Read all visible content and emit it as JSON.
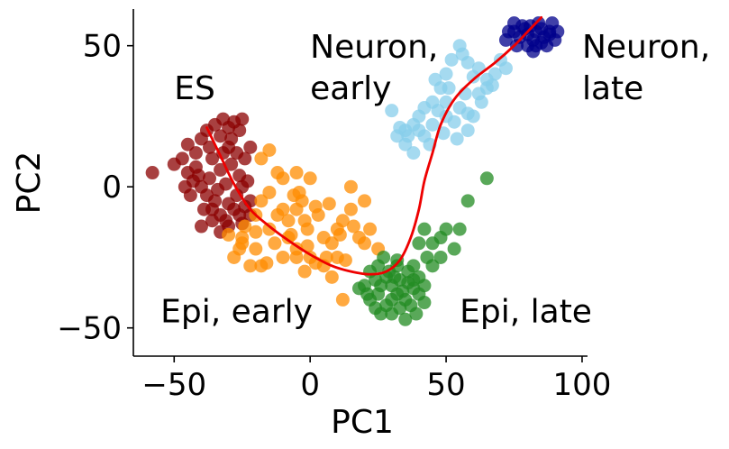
{
  "chart_data": {
    "type": "scatter",
    "title": "",
    "xlabel": "PC1",
    "ylabel": "PC2",
    "xlim": [
      -65,
      102
    ],
    "ylim": [
      -60,
      63
    ],
    "xticks": [
      -50,
      0,
      50,
      100
    ],
    "xtick_labels": [
      "−50",
      "0",
      "50",
      "100"
    ],
    "yticks": [
      -50,
      0,
      50
    ],
    "ytick_labels": [
      "−50",
      "0",
      "50"
    ],
    "grid": false,
    "legend": "none",
    "annotations": [
      {
        "text": "ES",
        "x": -50,
        "y": 31
      },
      {
        "text": "Neuron,\nearly",
        "x": 0,
        "y": 31
      },
      {
        "text": "Neuron,\nlate",
        "x": 100,
        "y": 31
      },
      {
        "text": "Epi, early",
        "x": -55,
        "y": -48
      },
      {
        "text": "Epi, late",
        "x": 55,
        "y": -48
      }
    ],
    "series": [
      {
        "color": "#8b0000",
        "points": [
          [
            -58,
            5
          ],
          [
            -50,
            8
          ],
          [
            -47,
            10
          ],
          [
            -45,
            15
          ],
          [
            -42,
            12
          ],
          [
            -40,
            17
          ],
          [
            -38,
            20
          ],
          [
            -35,
            22
          ],
          [
            -32,
            24
          ],
          [
            -30,
            21
          ],
          [
            -28,
            23
          ],
          [
            -26,
            20
          ],
          [
            -25,
            24
          ],
          [
            -33,
            18
          ],
          [
            -37,
            14
          ],
          [
            -42,
            7
          ],
          [
            -45,
            5
          ],
          [
            -43,
            2
          ],
          [
            -40,
            0
          ],
          [
            -38,
            -3
          ],
          [
            -36,
            -8
          ],
          [
            -33,
            -10
          ],
          [
            -30,
            -6
          ],
          [
            -27,
            -3
          ],
          [
            -25,
            0
          ],
          [
            -22,
            -5
          ],
          [
            -28,
            -8
          ],
          [
            -31,
            -12
          ],
          [
            -26,
            -10
          ],
          [
            -24,
            -7
          ],
          [
            -35,
            -5
          ],
          [
            -39,
            -8
          ],
          [
            -37,
            3
          ],
          [
            -33,
            6
          ],
          [
            -29,
            8
          ],
          [
            -26,
            4
          ],
          [
            -23,
            2
          ],
          [
            -31,
            1
          ],
          [
            -34,
            -1
          ],
          [
            -36,
            10
          ],
          [
            -30,
            14
          ],
          [
            -27,
            12
          ],
          [
            -24,
            10
          ],
          [
            -22,
            14
          ],
          [
            -29,
            17
          ],
          [
            -32,
            12
          ],
          [
            -40,
            -14
          ],
          [
            -36,
            -12
          ],
          [
            -30,
            -14
          ],
          [
            -25,
            -13
          ],
          [
            -33,
            -16
          ],
          [
            -44,
            -3
          ],
          [
            -46,
            0
          ],
          [
            -41,
            4
          ],
          [
            -22,
            -10
          ]
        ]
      },
      {
        "color": "#ff8c00",
        "points": [
          [
            -30,
            -17
          ],
          [
            -25,
            -20
          ],
          [
            -20,
            -22
          ],
          [
            -28,
            -25
          ],
          [
            -18,
            -28
          ],
          [
            -10,
            -25
          ],
          [
            -5,
            -22
          ],
          [
            -15,
            -15
          ],
          [
            -12,
            -10
          ],
          [
            -20,
            -10
          ],
          [
            -18,
            -5
          ],
          [
            -15,
            -2
          ],
          [
            -10,
            -8
          ],
          [
            -8,
            -12
          ],
          [
            -5,
            -8
          ],
          [
            -3,
            -5
          ],
          [
            -1,
            -15
          ],
          [
            3,
            -10
          ],
          [
            5,
            -18
          ],
          [
            8,
            -20
          ],
          [
            10,
            -15
          ],
          [
            12,
            -12
          ],
          [
            15,
            -8
          ],
          [
            18,
            -18
          ],
          [
            20,
            -20
          ],
          [
            22,
            -15
          ],
          [
            5,
            -28
          ],
          [
            8,
            -32
          ],
          [
            2,
            -27
          ],
          [
            0,
            -25
          ],
          [
            -2,
            -30
          ],
          [
            12,
            -40
          ],
          [
            -5,
            -25
          ],
          [
            0,
            3
          ],
          [
            -5,
            5
          ],
          [
            -10,
            3
          ],
          [
            -18,
            10
          ],
          [
            -15,
            13
          ],
          [
            -25,
            -18
          ],
          [
            -22,
            -28
          ],
          [
            -16,
            -27
          ],
          [
            -2,
            -12
          ],
          [
            2,
            -7
          ],
          [
            7,
            -6
          ],
          [
            11,
            -17
          ],
          [
            16,
            -14
          ],
          [
            25,
            -22
          ],
          [
            -7,
            -17
          ],
          [
            -13,
            -20
          ],
          [
            10,
            -25
          ],
          [
            -6,
            -3
          ],
          [
            -24,
            -14
          ],
          [
            15,
            0
          ],
          [
            -12,
            5
          ],
          [
            20,
            -5
          ],
          [
            -8,
            -18
          ],
          [
            -4,
            -2
          ],
          [
            13,
            -26
          ],
          [
            6,
            -25
          ],
          [
            -1,
            -21
          ],
          [
            -20,
            -16
          ],
          [
            -26,
            -22
          ]
        ]
      },
      {
        "color": "#87ceeb",
        "points": [
          [
            30,
            27
          ],
          [
            32,
            18
          ],
          [
            35,
            20
          ],
          [
            38,
            22
          ],
          [
            40,
            25
          ],
          [
            42,
            28
          ],
          [
            45,
            30
          ],
          [
            48,
            35
          ],
          [
            50,
            40
          ],
          [
            52,
            45
          ],
          [
            55,
            50
          ],
          [
            58,
            44
          ],
          [
            60,
            39
          ],
          [
            62,
            42
          ],
          [
            65,
            38
          ],
          [
            68,
            40
          ],
          [
            70,
            45
          ],
          [
            35,
            15
          ],
          [
            38,
            12
          ],
          [
            42,
            18
          ],
          [
            45,
            22
          ],
          [
            50,
            25
          ],
          [
            55,
            28
          ],
          [
            58,
            20
          ],
          [
            60,
            25
          ],
          [
            65,
            35
          ],
          [
            50,
            30
          ],
          [
            47,
            27
          ],
          [
            53,
            23
          ],
          [
            57,
            33
          ],
          [
            63,
            30
          ],
          [
            67,
            36
          ],
          [
            72,
            42
          ],
          [
            40,
            20
          ],
          [
            44,
            15
          ],
          [
            49,
            19
          ],
          [
            54,
            17
          ],
          [
            58,
            26
          ],
          [
            62,
            33
          ],
          [
            46,
            38
          ],
          [
            51,
            35
          ],
          [
            56,
            47
          ],
          [
            36,
            18
          ],
          [
            33,
            21
          ]
        ]
      },
      {
        "color": "#228b22",
        "points": [
          [
            20,
            -35
          ],
          [
            22,
            -30
          ],
          [
            25,
            -28
          ],
          [
            28,
            -32
          ],
          [
            30,
            -35
          ],
          [
            32,
            -38
          ],
          [
            35,
            -40
          ],
          [
            38,
            -36
          ],
          [
            40,
            -32
          ],
          [
            25,
            -38
          ],
          [
            28,
            -42
          ],
          [
            30,
            -40
          ],
          [
            33,
            -33
          ],
          [
            36,
            -30
          ],
          [
            38,
            -28
          ],
          [
            40,
            -38
          ],
          [
            22,
            -40
          ],
          [
            26,
            -35
          ],
          [
            34,
            -37
          ],
          [
            37,
            -42
          ],
          [
            30,
            -45
          ],
          [
            35,
            -47
          ],
          [
            42,
            -35
          ],
          [
            40,
            -20
          ],
          [
            42,
            -15
          ],
          [
            45,
            -20
          ],
          [
            48,
            -18
          ],
          [
            50,
            -15
          ],
          [
            55,
            -15
          ],
          [
            58,
            -5
          ],
          [
            65,
            3
          ],
          [
            53,
            -22
          ],
          [
            48,
            -25
          ],
          [
            45,
            -28
          ],
          [
            43,
            -25
          ],
          [
            32,
            -28
          ],
          [
            27,
            -25
          ],
          [
            24,
            -33
          ],
          [
            39,
            -45
          ],
          [
            29,
            -30
          ],
          [
            31,
            -32
          ],
          [
            36,
            -34
          ],
          [
            21,
            -38
          ],
          [
            18,
            -36
          ],
          [
            33,
            -43
          ],
          [
            42,
            -41
          ],
          [
            26,
            -45
          ],
          [
            38,
            -33
          ],
          [
            32,
            -26
          ],
          [
            24,
            -43
          ]
        ]
      },
      {
        "color": "#00008b",
        "points": [
          [
            72,
            52
          ],
          [
            75,
            55
          ],
          [
            78,
            57
          ],
          [
            80,
            54
          ],
          [
            82,
            52
          ],
          [
            85,
            56
          ],
          [
            88,
            55
          ],
          [
            90,
            52
          ],
          [
            87,
            50
          ],
          [
            84,
            58
          ],
          [
            80,
            50
          ],
          [
            76,
            50
          ],
          [
            73,
            55
          ],
          [
            83,
            55
          ],
          [
            86,
            53
          ],
          [
            89,
            58
          ],
          [
            82,
            48
          ],
          [
            79,
            56
          ],
          [
            85,
            51
          ],
          [
            77,
            53
          ],
          [
            81,
            57
          ],
          [
            88,
            54
          ],
          [
            83,
            50
          ],
          [
            91,
            55
          ],
          [
            75,
            58
          ]
        ]
      }
    ],
    "trajectory": {
      "color": "#ee0000",
      "points": [
        [
          -38,
          21
        ],
        [
          -33,
          11
        ],
        [
          -28,
          1
        ],
        [
          -22,
          -8
        ],
        [
          -15,
          -14
        ],
        [
          -8,
          -19
        ],
        [
          0,
          -24
        ],
        [
          8,
          -28
        ],
        [
          15,
          -30
        ],
        [
          22,
          -31
        ],
        [
          28,
          -30
        ],
        [
          33,
          -26
        ],
        [
          37,
          -18
        ],
        [
          40,
          -8
        ],
        [
          42,
          2
        ],
        [
          45,
          12
        ],
        [
          48,
          22
        ],
        [
          53,
          31
        ],
        [
          60,
          38
        ],
        [
          68,
          44
        ],
        [
          75,
          50
        ],
        [
          80,
          55
        ],
        [
          85,
          60
        ]
      ]
    }
  }
}
